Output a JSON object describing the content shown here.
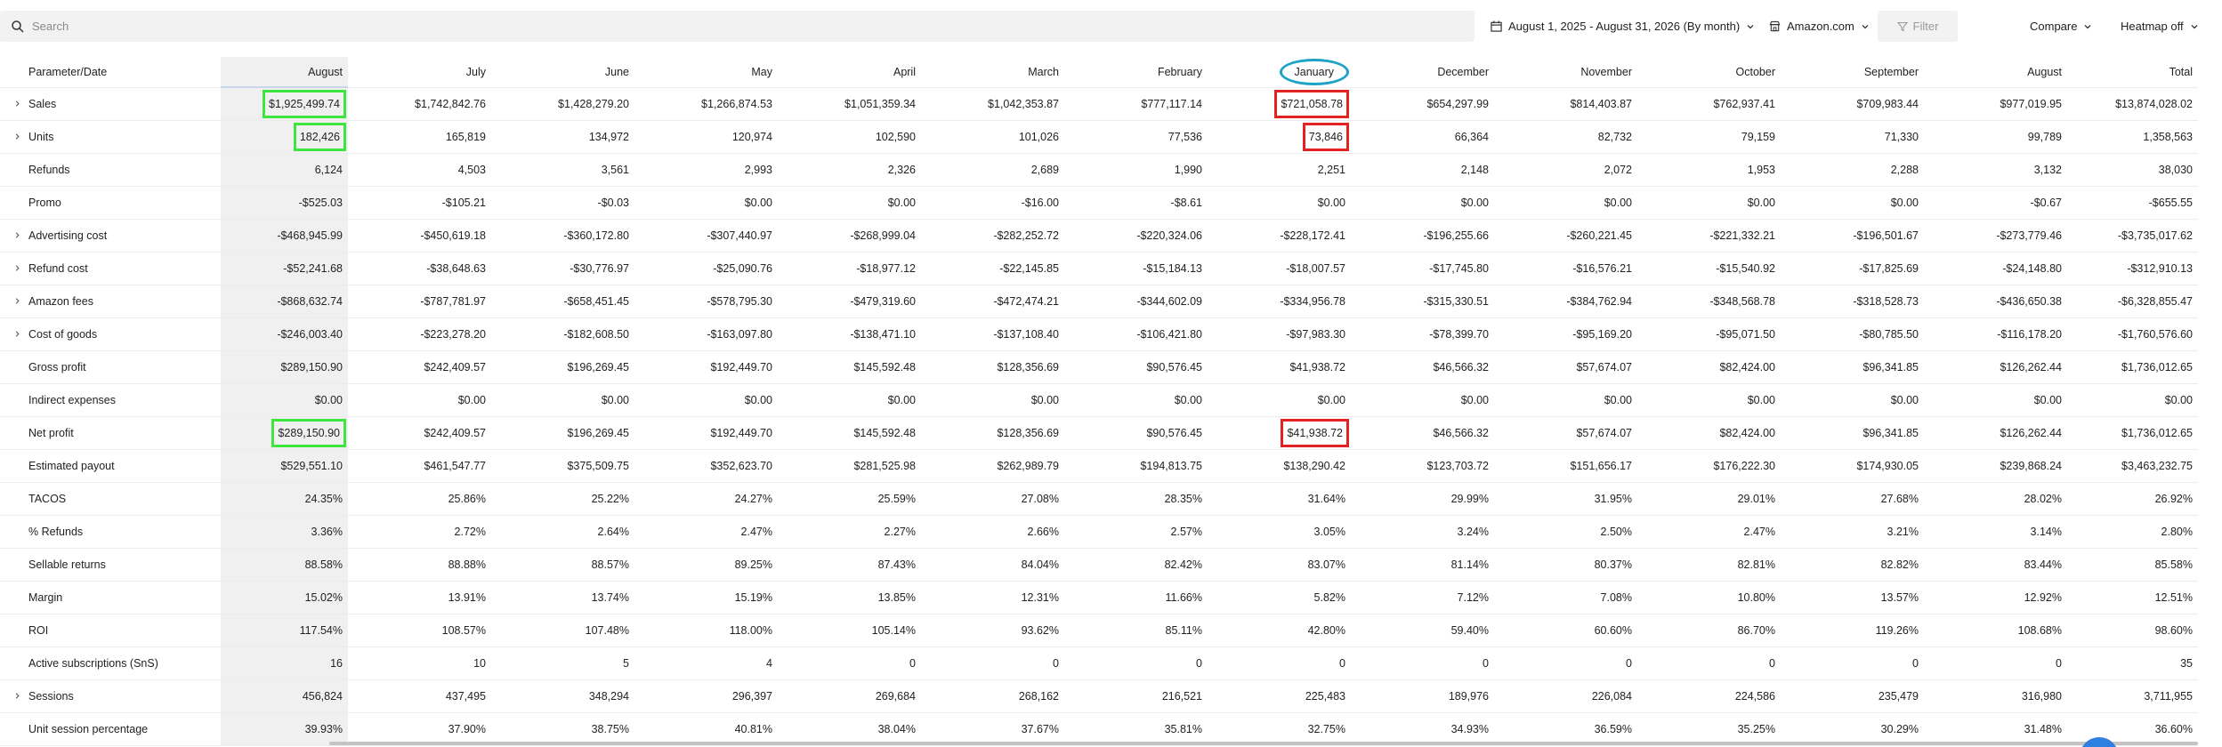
{
  "toolbar": {
    "search_placeholder": "Search",
    "date_range": "August 1, 2025 - August 31, 2026 (By month)",
    "marketplace": "Amazon.com",
    "filter_label": "Filter",
    "compare_label": "Compare",
    "heatmap_label": "Heatmap off"
  },
  "table": {
    "param_header": "Parameter/Date",
    "columns": [
      "August",
      "July",
      "June",
      "May",
      "April",
      "March",
      "February",
      "January",
      "December",
      "November",
      "October",
      "September",
      "August",
      "Total"
    ],
    "rows": [
      {
        "label": "Sales",
        "expandable": true,
        "values": [
          "$1,925,499.74",
          "$1,742,842.76",
          "$1,428,279.20",
          "$1,266,874.53",
          "$1,051,359.34",
          "$1,042,353.87",
          "$777,117.14",
          "$721,058.78",
          "$654,297.99",
          "$814,403.87",
          "$762,937.41",
          "$709,983.44",
          "$977,019.95",
          "$13,874,028.02"
        ]
      },
      {
        "label": "Units",
        "expandable": true,
        "values": [
          "182,426",
          "165,819",
          "134,972",
          "120,974",
          "102,590",
          "101,026",
          "77,536",
          "73,846",
          "66,364",
          "82,732",
          "79,159",
          "71,330",
          "99,789",
          "1,358,563"
        ]
      },
      {
        "label": "Refunds",
        "expandable": false,
        "values": [
          "6,124",
          "4,503",
          "3,561",
          "2,993",
          "2,326",
          "2,689",
          "1,990",
          "2,251",
          "2,148",
          "2,072",
          "1,953",
          "2,288",
          "3,132",
          "38,030"
        ]
      },
      {
        "label": "Promo",
        "expandable": false,
        "values": [
          "-$525.03",
          "-$105.21",
          "-$0.03",
          "$0.00",
          "$0.00",
          "-$16.00",
          "-$8.61",
          "$0.00",
          "$0.00",
          "$0.00",
          "$0.00",
          "$0.00",
          "-$0.67",
          "-$655.55"
        ]
      },
      {
        "label": "Advertising cost",
        "expandable": true,
        "values": [
          "-$468,945.99",
          "-$450,619.18",
          "-$360,172.80",
          "-$307,440.97",
          "-$268,999.04",
          "-$282,252.72",
          "-$220,324.06",
          "-$228,172.41",
          "-$196,255.66",
          "-$260,221.45",
          "-$221,332.21",
          "-$196,501.67",
          "-$273,779.46",
          "-$3,735,017.62"
        ]
      },
      {
        "label": "Refund cost",
        "expandable": true,
        "values": [
          "-$52,241.68",
          "-$38,648.63",
          "-$30,776.97",
          "-$25,090.76",
          "-$18,977.12",
          "-$22,145.85",
          "-$15,184.13",
          "-$18,007.57",
          "-$17,745.80",
          "-$16,576.21",
          "-$15,540.92",
          "-$17,825.69",
          "-$24,148.80",
          "-$312,910.13"
        ]
      },
      {
        "label": "Amazon fees",
        "expandable": true,
        "values": [
          "-$868,632.74",
          "-$787,781.97",
          "-$658,451.45",
          "-$578,795.30",
          "-$479,319.60",
          "-$472,474.21",
          "-$344,602.09",
          "-$334,956.78",
          "-$315,330.51",
          "-$384,762.94",
          "-$348,568.78",
          "-$318,528.73",
          "-$436,650.38",
          "-$6,328,855.47"
        ]
      },
      {
        "label": "Cost of goods",
        "expandable": true,
        "values": [
          "-$246,003.40",
          "-$223,278.20",
          "-$182,608.50",
          "-$163,097.80",
          "-$138,471.10",
          "-$137,108.40",
          "-$106,421.80",
          "-$97,983.30",
          "-$78,399.70",
          "-$95,169.20",
          "-$95,071.50",
          "-$80,785.50",
          "-$116,178.20",
          "-$1,760,576.60"
        ]
      },
      {
        "label": "Gross profit",
        "expandable": false,
        "values": [
          "$289,150.90",
          "$242,409.57",
          "$196,269.45",
          "$192,449.70",
          "$145,592.48",
          "$128,356.69",
          "$90,576.45",
          "$41,938.72",
          "$46,566.32",
          "$57,674.07",
          "$82,424.00",
          "$96,341.85",
          "$126,262.44",
          "$1,736,012.65"
        ]
      },
      {
        "label": "Indirect expenses",
        "expandable": false,
        "values": [
          "$0.00",
          "$0.00",
          "$0.00",
          "$0.00",
          "$0.00",
          "$0.00",
          "$0.00",
          "$0.00",
          "$0.00",
          "$0.00",
          "$0.00",
          "$0.00",
          "$0.00",
          "$0.00"
        ]
      },
      {
        "label": "Net profit",
        "expandable": false,
        "values": [
          "$289,150.90",
          "$242,409.57",
          "$196,269.45",
          "$192,449.70",
          "$145,592.48",
          "$128,356.69",
          "$90,576.45",
          "$41,938.72",
          "$46,566.32",
          "$57,674.07",
          "$82,424.00",
          "$96,341.85",
          "$126,262.44",
          "$1,736,012.65"
        ]
      },
      {
        "label": "Estimated payout",
        "expandable": false,
        "values": [
          "$529,551.10",
          "$461,547.77",
          "$375,509.75",
          "$352,623.70",
          "$281,525.98",
          "$262,989.79",
          "$194,813.75",
          "$138,290.42",
          "$123,703.72",
          "$151,656.17",
          "$176,222.30",
          "$174,930.05",
          "$239,868.24",
          "$3,463,232.75"
        ]
      },
      {
        "label": "TACOS",
        "expandable": false,
        "values": [
          "24.35%",
          "25.86%",
          "25.22%",
          "24.27%",
          "25.59%",
          "27.08%",
          "28.35%",
          "31.64%",
          "29.99%",
          "31.95%",
          "29.01%",
          "27.68%",
          "28.02%",
          "26.92%"
        ]
      },
      {
        "label": "% Refunds",
        "expandable": false,
        "values": [
          "3.36%",
          "2.72%",
          "2.64%",
          "2.47%",
          "2.27%",
          "2.66%",
          "2.57%",
          "3.05%",
          "3.24%",
          "2.50%",
          "2.47%",
          "3.21%",
          "3.14%",
          "2.80%"
        ]
      },
      {
        "label": "Sellable returns",
        "expandable": false,
        "values": [
          "88.58%",
          "88.88%",
          "88.57%",
          "89.25%",
          "87.43%",
          "84.04%",
          "82.42%",
          "83.07%",
          "81.14%",
          "80.37%",
          "82.81%",
          "82.82%",
          "83.44%",
          "85.58%"
        ]
      },
      {
        "label": "Margin",
        "expandable": false,
        "values": [
          "15.02%",
          "13.91%",
          "13.74%",
          "15.19%",
          "13.85%",
          "12.31%",
          "11.66%",
          "5.82%",
          "7.12%",
          "7.08%",
          "10.80%",
          "13.57%",
          "12.92%",
          "12.51%"
        ]
      },
      {
        "label": "ROI",
        "expandable": false,
        "values": [
          "117.54%",
          "108.57%",
          "107.48%",
          "118.00%",
          "105.14%",
          "93.62%",
          "85.11%",
          "42.80%",
          "59.40%",
          "60.60%",
          "86.70%",
          "119.26%",
          "108.68%",
          "98.60%"
        ]
      },
      {
        "label": "Active subscriptions (SnS)",
        "expandable": false,
        "values": [
          "16",
          "10",
          "5",
          "4",
          "0",
          "0",
          "0",
          "0",
          "0",
          "0",
          "0",
          "0",
          "0",
          "35"
        ]
      },
      {
        "label": "Sessions",
        "expandable": true,
        "values": [
          "456,824",
          "437,495",
          "348,294",
          "296,397",
          "269,684",
          "268,162",
          "216,521",
          "225,483",
          "189,976",
          "226,084",
          "224,586",
          "235,479",
          "316,980",
          "3,711,955"
        ]
      },
      {
        "label": "Unit session percentage",
        "expandable": false,
        "values": [
          "39.93%",
          "37.90%",
          "38.75%",
          "40.81%",
          "38.04%",
          "37.67%",
          "35.81%",
          "32.75%",
          "34.93%",
          "36.59%",
          "35.25%",
          "30.29%",
          "31.48%",
          "36.60%"
        ]
      }
    ],
    "highlights": {
      "green_cells": [
        [
          0,
          0
        ],
        [
          1,
          0
        ],
        [
          10,
          0
        ]
      ],
      "red_cells": [
        [
          0,
          7
        ],
        [
          1,
          7
        ],
        [
          10,
          7
        ]
      ],
      "circled_header": 7,
      "colors": {
        "green": "#3ee53e",
        "red": "#e32222",
        "circle": "#1ea2c6"
      }
    }
  },
  "icons": {
    "search": "search-icon",
    "calendar": "calendar-icon",
    "store": "store-icon",
    "filter": "filter-icon",
    "chevron": "chevron-down-icon",
    "expand": "chevron-right-icon"
  }
}
